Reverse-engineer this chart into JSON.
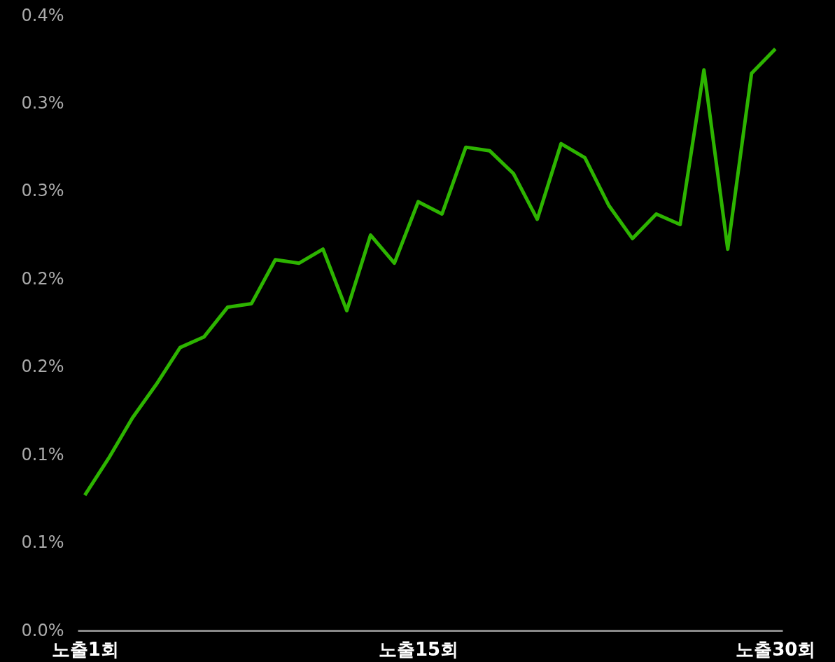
{
  "chart_data": {
    "type": "line",
    "categories": [
      "노출1회",
      null,
      null,
      null,
      null,
      null,
      null,
      null,
      null,
      null,
      null,
      null,
      null,
      null,
      "노출15회",
      null,
      null,
      null,
      null,
      null,
      null,
      null,
      null,
      null,
      null,
      null,
      null,
      null,
      null,
      "노출30회"
    ],
    "series": [
      {
        "color": "#2db400",
        "values": [
          0.077,
          0.098,
          0.121,
          0.14,
          0.161,
          0.167,
          0.184,
          0.186,
          0.211,
          0.209,
          0.217,
          0.182,
          0.225,
          0.209,
          0.244,
          0.237,
          0.275,
          0.273,
          0.26,
          0.234,
          0.277,
          0.269,
          0.242,
          0.223,
          0.237,
          0.231,
          0.319,
          0.217,
          0.317,
          0.331
        ]
      }
    ],
    "ylim": [
      0,
      0.35
    ],
    "yticks": [
      {
        "value": 0,
        "label": "0.0%"
      },
      {
        "value": 0.05,
        "label": "0.1%"
      },
      {
        "value": 0.1,
        "label": "0.1%"
      },
      {
        "value": 0.15,
        "label": "0.2%"
      },
      {
        "value": 0.2,
        "label": "0.2%"
      },
      {
        "value": 0.25,
        "label": "0.3%"
      },
      {
        "value": 0.3,
        "label": "0.3%"
      },
      {
        "value": 0.35,
        "label": "0.4%"
      }
    ],
    "grid": false,
    "marker": "none",
    "line_style": "solid"
  }
}
